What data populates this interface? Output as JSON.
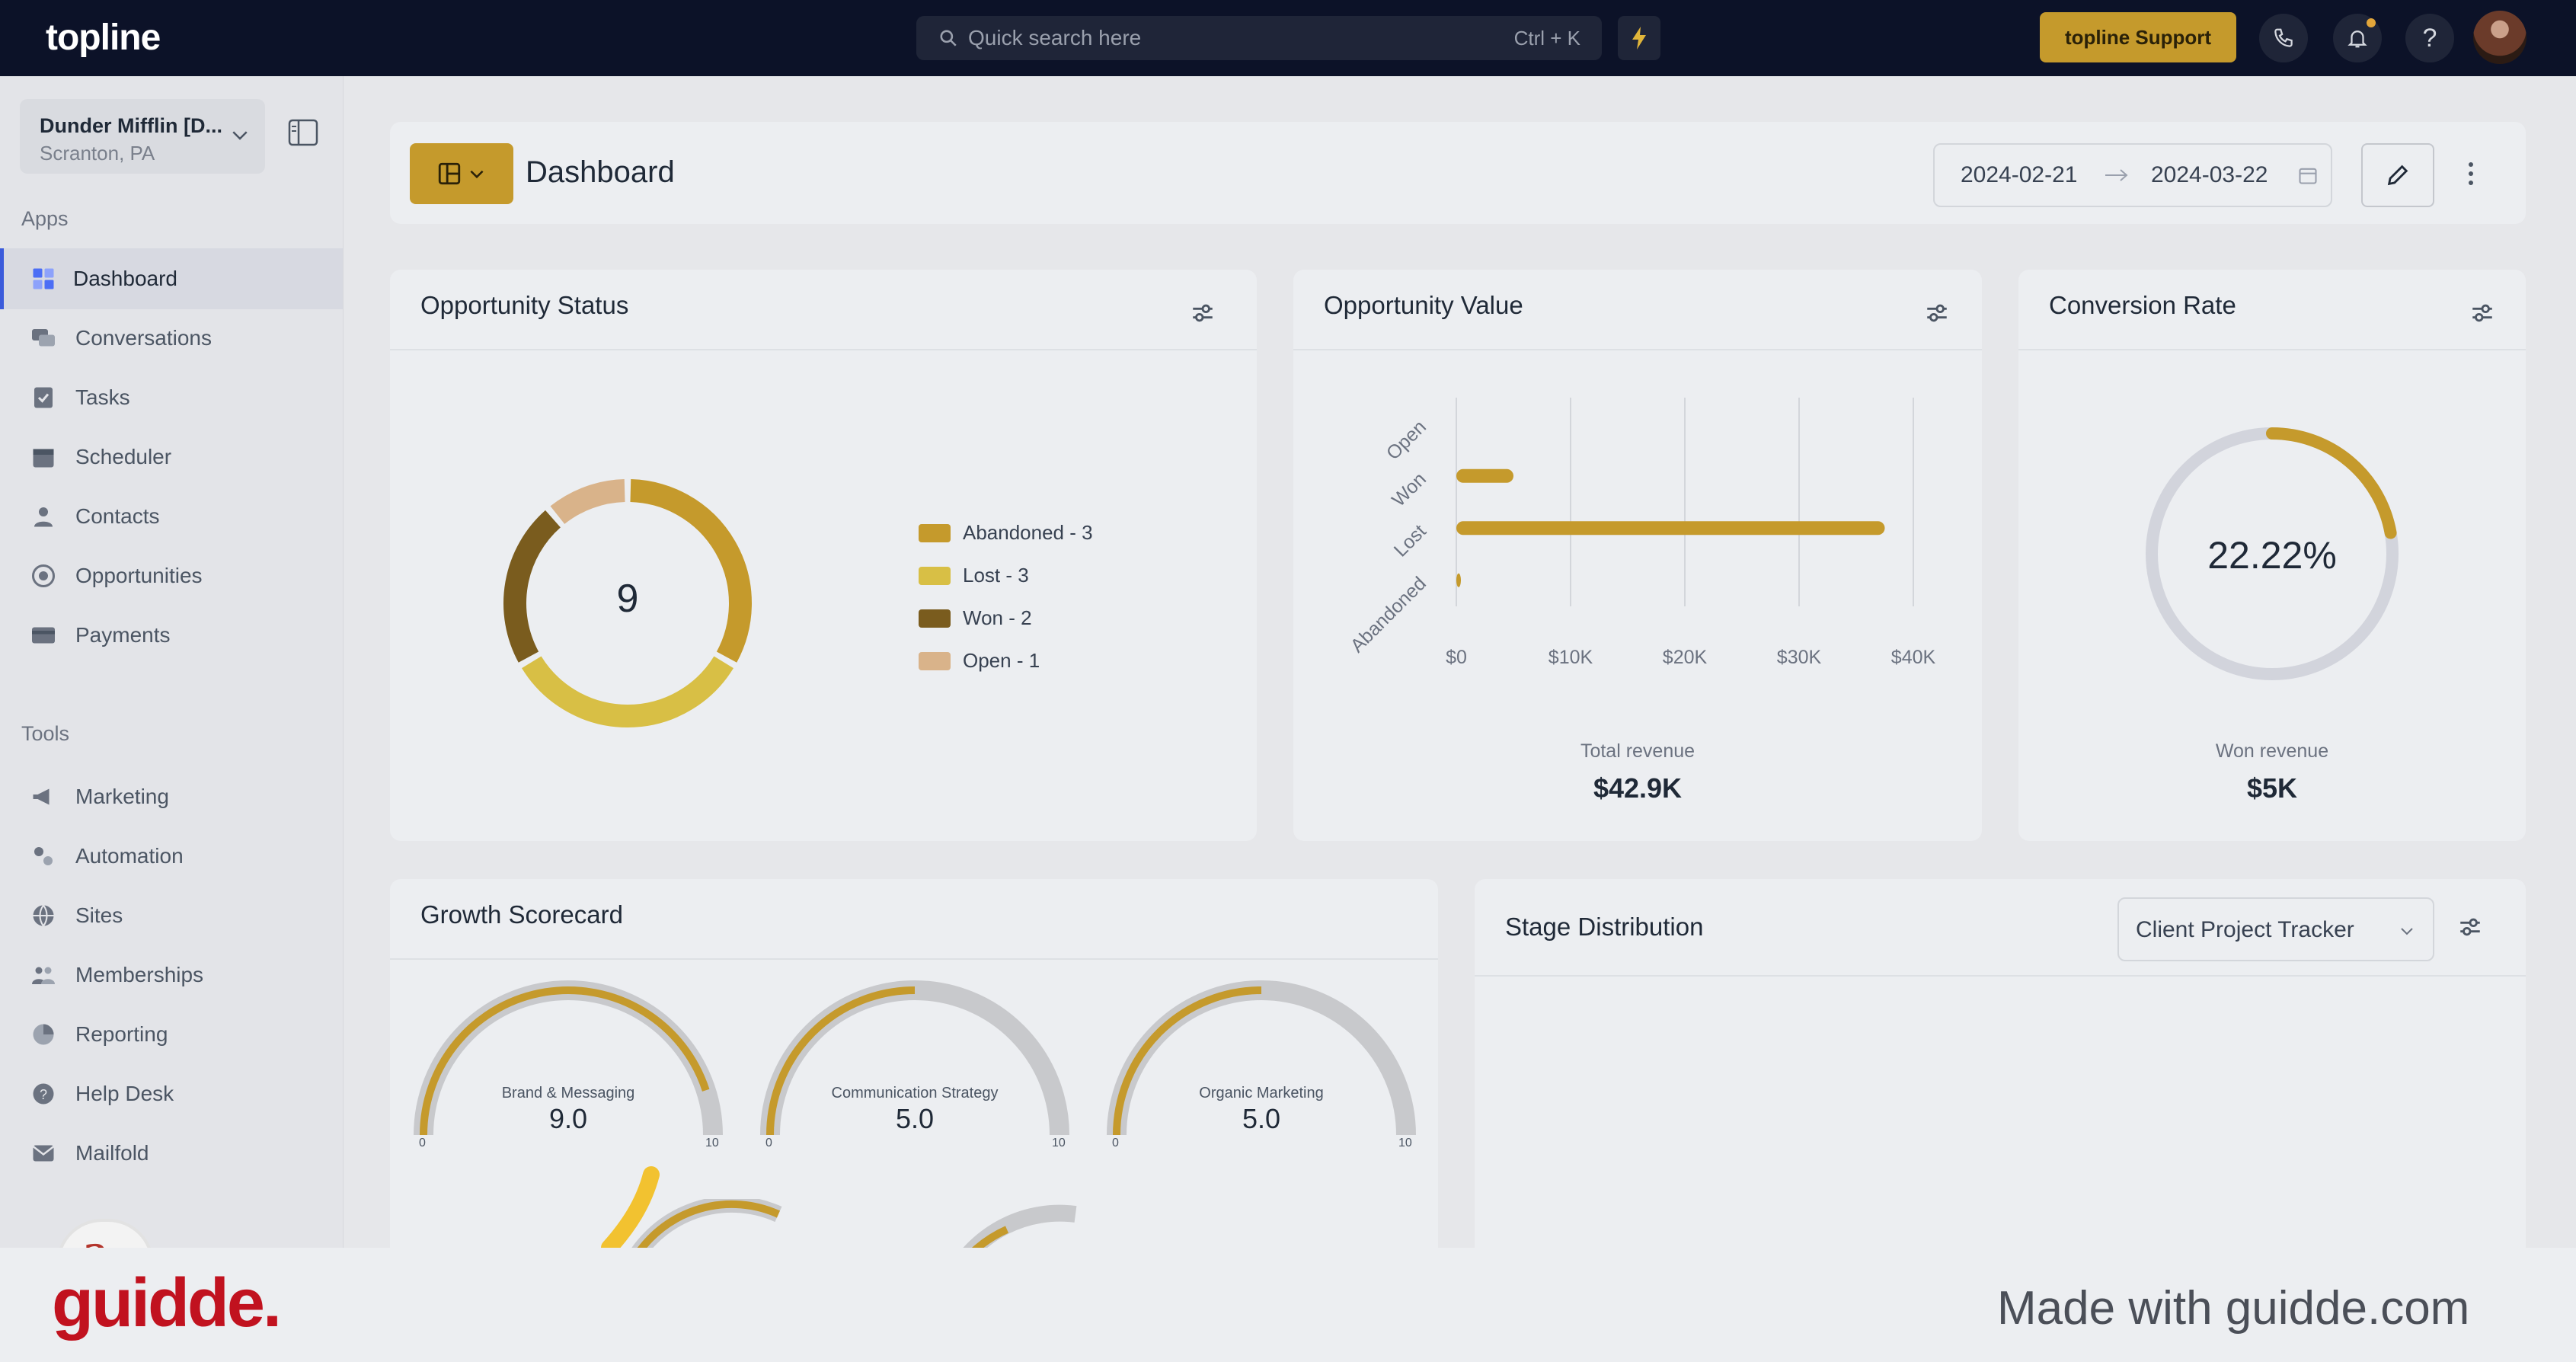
{
  "topbar": {
    "logo": "topline",
    "search_placeholder": "Quick search here",
    "search_shortcut": "Ctrl + K",
    "support_label": "topline Support"
  },
  "sidebar": {
    "location_name": "Dunder Mifflin [D...",
    "location_sub": "Scranton, PA",
    "apps_label": "Apps",
    "tools_label": "Tools",
    "apps": [
      {
        "label": "Dashboard",
        "icon": "dashboard-icon",
        "active": true
      },
      {
        "label": "Conversations",
        "icon": "chat-icon"
      },
      {
        "label": "Tasks",
        "icon": "tasks-icon"
      },
      {
        "label": "Scheduler",
        "icon": "calendar-icon"
      },
      {
        "label": "Contacts",
        "icon": "contacts-icon"
      },
      {
        "label": "Opportunities",
        "icon": "target-icon"
      },
      {
        "label": "Payments",
        "icon": "credit-card-icon"
      }
    ],
    "tools": [
      {
        "label": "Marketing",
        "icon": "megaphone-icon"
      },
      {
        "label": "Automation",
        "icon": "gears-icon"
      },
      {
        "label": "Sites",
        "icon": "globe-icon"
      },
      {
        "label": "Memberships",
        "icon": "users-icon"
      },
      {
        "label": "Reporting",
        "icon": "pie-icon"
      },
      {
        "label": "Help Desk",
        "icon": "help-icon"
      },
      {
        "label": "Mailfold",
        "icon": "mail-icon"
      }
    ]
  },
  "header": {
    "title": "Dashboard",
    "date_start": "2024-02-21",
    "date_end": "2024-03-22"
  },
  "opportunity_status": {
    "title": "Opportunity Status",
    "total": "9",
    "legend": [
      {
        "label": "Abandoned - 3",
        "value": 3,
        "color": "#c59a2c"
      },
      {
        "label": "Lost - 3",
        "value": 3,
        "color": "#d8bf45"
      },
      {
        "label": "Won - 2",
        "value": 2,
        "color": "#7a5c1e"
      },
      {
        "label": "Open - 1",
        "value": 1,
        "color": "#d9b38a"
      }
    ]
  },
  "opportunity_value": {
    "title": "Opportunity Value",
    "total_label": "Total revenue",
    "total_value": "$42.9K",
    "chart_data": {
      "type": "bar",
      "orientation": "horizontal",
      "categories": [
        "Open",
        "Won",
        "Lost",
        "Abandoned"
      ],
      "values": [
        0,
        5000,
        37500,
        400
      ],
      "xlim": [
        0,
        40000
      ],
      "x_ticks": [
        "$0",
        "$10K",
        "$20K",
        "$30K",
        "$40K"
      ],
      "grid": true,
      "color": "#c59a2c"
    }
  },
  "conversion_rate": {
    "title": "Conversion Rate",
    "value": "22.22%",
    "fraction": 0.2222,
    "won_label": "Won revenue",
    "won_value": "$5K"
  },
  "growth_scorecard": {
    "title": "Growth Scorecard",
    "gauges": [
      {
        "label": "Brand & Messaging",
        "value": "9.0",
        "fraction": 0.9,
        "min": "0",
        "max": "10"
      },
      {
        "label": "Communication Strategy",
        "value": "5.0",
        "fraction": 0.5,
        "min": "0",
        "max": "10"
      },
      {
        "label": "Organic Marketing",
        "value": "5.0",
        "fraction": 0.5,
        "min": "0",
        "max": "10"
      }
    ]
  },
  "stage_distribution": {
    "title": "Stage Distribution",
    "pipeline": "Client Project Tracker"
  },
  "footer": {
    "logo": "guidde.",
    "made_with": "Made with guidde.com"
  }
}
